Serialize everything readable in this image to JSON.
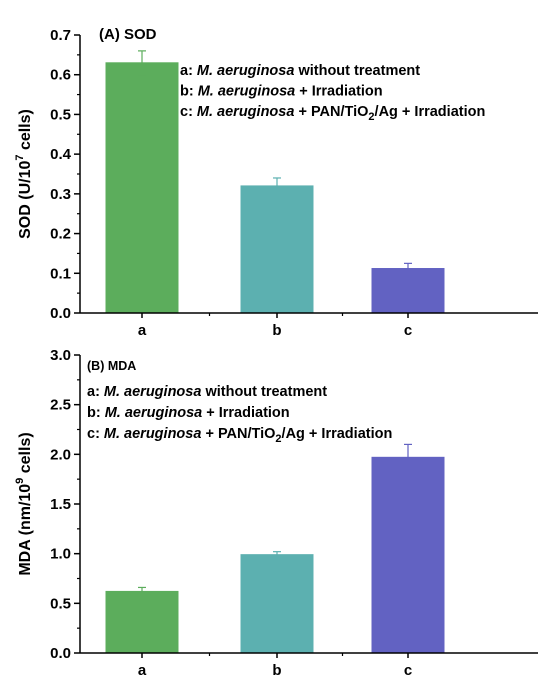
{
  "chart_data": [
    {
      "type": "bar",
      "title": "(A) SOD",
      "ylabel": "SOD (U/10^7 cells)",
      "ylabel_parts": [
        "SOD (U/10",
        "7",
        " cells)"
      ],
      "categories": [
        "a",
        "b",
        "c"
      ],
      "values": [
        0.63,
        0.32,
        0.112
      ],
      "errors": [
        0.03,
        0.02,
        0.013
      ],
      "colors": [
        "#5cad5c",
        "#5cb0b0",
        "#6262c2"
      ],
      "ylim": [
        0,
        0.7
      ],
      "yticks": [
        0.0,
        0.1,
        0.2,
        0.3,
        0.4,
        0.5,
        0.6,
        0.7
      ],
      "ytick_labels": [
        "0.0",
        "0.1",
        "0.2",
        "0.3",
        "0.4",
        "0.5",
        "0.6",
        "0.7"
      ],
      "legend": [
        [
          {
            "t": "a: "
          },
          {
            "t": "M. aeruginosa",
            "i": true
          },
          {
            "t": "  without treatment"
          }
        ],
        [
          {
            "t": "b: "
          },
          {
            "t": "M. aeruginosa",
            "i": true
          },
          {
            "t": " + Irradiation"
          }
        ],
        [
          {
            "t": "c: "
          },
          {
            "t": "M. aeruginosa",
            "i": true
          },
          {
            "t": " + PAN/TiO"
          },
          {
            "t": "2",
            "sub": true
          },
          {
            "t": "/Ag + Irradiation"
          }
        ]
      ]
    },
    {
      "type": "bar",
      "title": "(B) MDA",
      "ylabel": "MDA (nm/10^9 cells)",
      "ylabel_parts": [
        "MDA (nm/10",
        "9",
        " cells)"
      ],
      "categories": [
        "a",
        "b",
        "c"
      ],
      "values": [
        0.62,
        0.99,
        1.97
      ],
      "errors": [
        0.04,
        0.03,
        0.13
      ],
      "colors": [
        "#5cad5c",
        "#5cb0b0",
        "#6262c2"
      ],
      "ylim": [
        0,
        3.0
      ],
      "yticks": [
        0.0,
        0.5,
        1.0,
        1.5,
        2.0,
        2.5,
        3.0
      ],
      "ytick_labels": [
        "0.0",
        "0.5",
        "1.0",
        "1.5",
        "2.0",
        "2.5",
        "3.0"
      ],
      "legend": [
        [
          {
            "t": "a: "
          },
          {
            "t": "M. aeruginosa",
            "i": true
          },
          {
            "t": "  without treatment"
          }
        ],
        [
          {
            "t": "b: "
          },
          {
            "t": "M. aeruginosa",
            "i": true
          },
          {
            "t": " + Irradiation"
          }
        ],
        [
          {
            "t": "c: "
          },
          {
            "t": "M. aeruginosa",
            "i": true
          },
          {
            "t": " + PAN/TiO"
          },
          {
            "t": "2",
            "sub": true
          },
          {
            "t": "/Ag + Irradiation"
          }
        ]
      ]
    }
  ]
}
